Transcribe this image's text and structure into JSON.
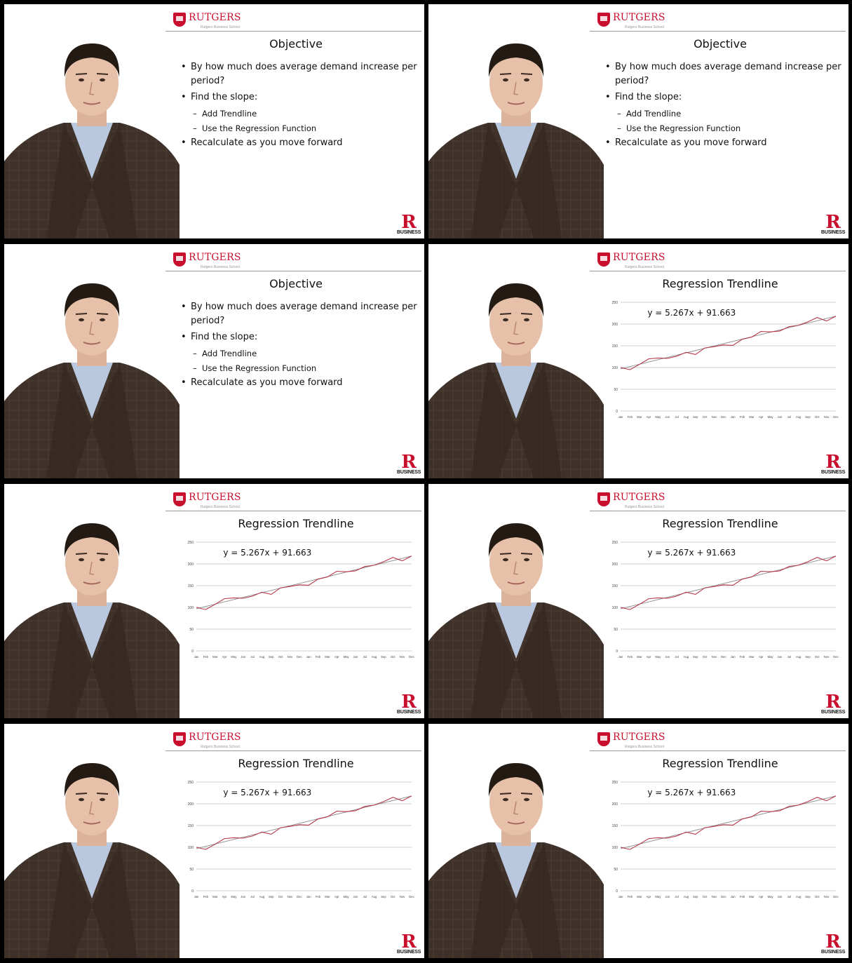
{
  "brand": {
    "name": "RUTGERS",
    "subtitle": "Rutgers Business School",
    "badge_letter": "R",
    "badge_text": "BUSINESS",
    "accent_color": "#c8102e"
  },
  "slides": {
    "objective": {
      "title": "Objective",
      "bullets": [
        "By how much does average demand increase per period?",
        "Find the slope:",
        "Add Trendline",
        "Use the Regression Function",
        "Recalculate as you move forward"
      ]
    },
    "trendline": {
      "title": "Regression Trendline",
      "equation": "y = 5.267x + 91.663"
    }
  },
  "frames": [
    {
      "slide": "objective"
    },
    {
      "slide": "objective"
    },
    {
      "slide": "objective"
    },
    {
      "slide": "trendline"
    },
    {
      "slide": "trendline"
    },
    {
      "slide": "trendline"
    },
    {
      "slide": "trendline"
    },
    {
      "slide": "trendline"
    }
  ],
  "chart_data": {
    "type": "line",
    "categories": [
      "Jan",
      "Feb",
      "Mar",
      "Apr",
      "May",
      "Jun",
      "Jul",
      "Aug",
      "Sep",
      "Oct",
      "Nov",
      "Dec",
      "Jan",
      "Feb",
      "Mar",
      "Apr",
      "May",
      "Jun",
      "Jul",
      "Aug",
      "Sep",
      "Oct",
      "Nov",
      "Dec"
    ],
    "series": [
      {
        "values": [
          100,
          95,
          107,
          120,
          122,
          121,
          126,
          135,
          130,
          145,
          148,
          152,
          151,
          165,
          170,
          183,
          182,
          184,
          194,
          197,
          205,
          215,
          207,
          218
        ],
        "color": "#b5374a"
      }
    ],
    "trendline": {
      "slope": 5.267,
      "intercept": 91.663,
      "color": "#8c8c8c"
    },
    "ylim": [
      0,
      250
    ],
    "yticks": [
      0,
      50,
      100,
      150,
      200,
      250
    ],
    "grid": true
  }
}
